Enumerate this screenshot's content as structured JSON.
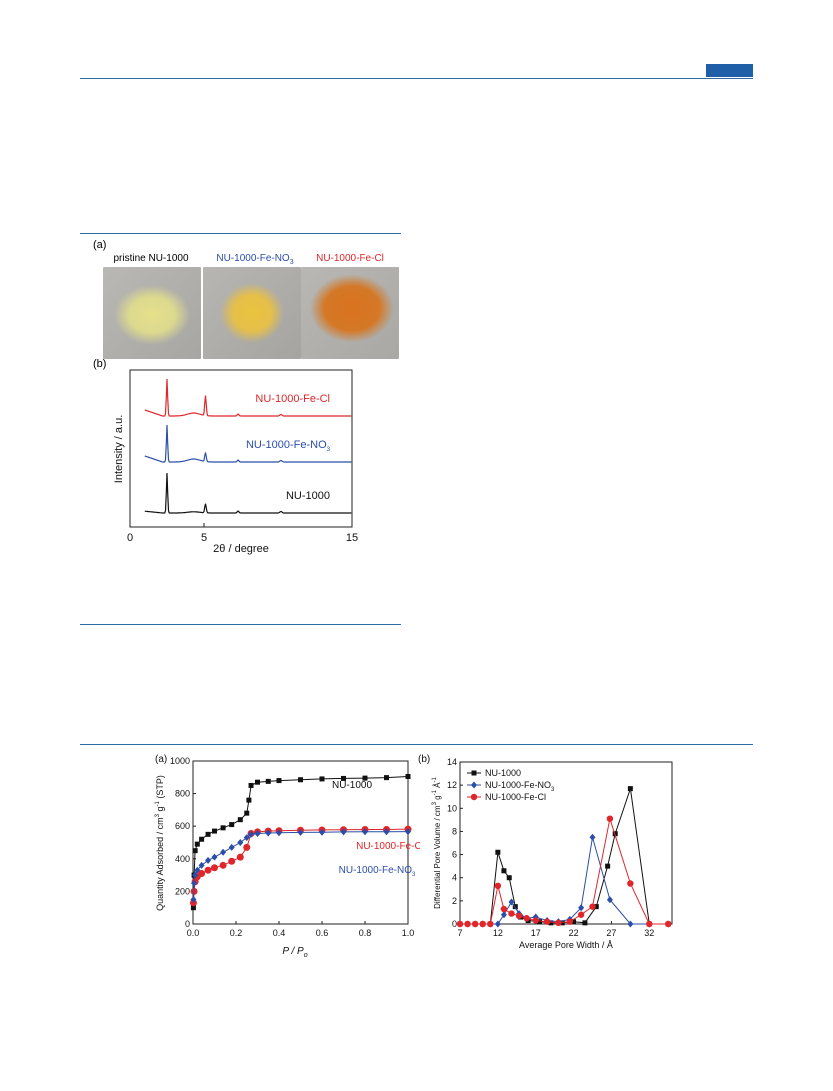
{
  "header": {
    "accent_color": "#1f5fa8"
  },
  "figure_top": {
    "panel_a_label": "(a)",
    "panel_b_label": "(b)",
    "photos": [
      {
        "title": "pristine NU-1000",
        "color": "#000000",
        "powder": "#e6e08a"
      },
      {
        "title": "NU-1000-Fe-NO",
        "subscript": "3",
        "color": "#2b4ea8",
        "powder": "#e8c23e"
      },
      {
        "title": "NU-1000-Fe-Cl",
        "color": "#e0262a",
        "powder": "#d9731f"
      }
    ]
  },
  "chart_data": [
    {
      "type": "line",
      "panel": "(b)",
      "xlabel": "2θ / degree",
      "ylabel": "Intensity / a.u.",
      "xlim": [
        0,
        15
      ],
      "x_ticks": [
        "0",
        "5",
        "15"
      ],
      "y_ticks": "none",
      "series": [
        {
          "name": "NU-1000-Fe-Cl",
          "color": "#e0262a",
          "offset": 2,
          "peaks_2theta": [
            2.5,
            5.1,
            7.3,
            10.2
          ]
        },
        {
          "name": "NU-1000-Fe-NO3",
          "color": "#2b4ea8",
          "offset": 1,
          "peaks_2theta": [
            2.5,
            5.1,
            7.3,
            10.2
          ]
        },
        {
          "name": "NU-1000",
          "color": "#111111",
          "offset": 0,
          "peaks_2theta": [
            2.5,
            5.1,
            7.3,
            10.2
          ]
        }
      ]
    },
    {
      "type": "line",
      "panel": "(a)",
      "xlabel": "P / P0",
      "ylabel": "Quantity Adsorbed / cm3 g-1 (STP)",
      "xlim": [
        0,
        1.0
      ],
      "ylim": [
        0,
        1000
      ],
      "x_ticks": [
        "0.0",
        "0.2",
        "0.4",
        "0.6",
        "0.8",
        "1.0"
      ],
      "y_ticks": [
        "0",
        "200",
        "400",
        "600",
        "800",
        "1000"
      ],
      "series": [
        {
          "name": "NU-1000",
          "color": "#111111",
          "marker": "square",
          "x": [
            0.002,
            0.005,
            0.01,
            0.02,
            0.04,
            0.07,
            0.1,
            0.14,
            0.18,
            0.22,
            0.25,
            0.26,
            0.27,
            0.3,
            0.35,
            0.4,
            0.5,
            0.6,
            0.7,
            0.8,
            0.9,
            1.0
          ],
          "y": [
            100,
            300,
            450,
            490,
            520,
            550,
            570,
            590,
            610,
            640,
            680,
            760,
            850,
            870,
            875,
            880,
            885,
            890,
            893,
            895,
            898,
            905
          ]
        },
        {
          "name": "NU-1000-Fe-Cl",
          "color": "#e0262a",
          "marker": "circle",
          "x": [
            0.002,
            0.005,
            0.01,
            0.02,
            0.04,
            0.07,
            0.1,
            0.14,
            0.18,
            0.22,
            0.25,
            0.27,
            0.3,
            0.35,
            0.4,
            0.5,
            0.6,
            0.7,
            0.8,
            0.9,
            1.0
          ],
          "y": [
            130,
            200,
            260,
            290,
            310,
            330,
            345,
            360,
            385,
            410,
            470,
            555,
            565,
            570,
            572,
            575,
            577,
            578,
            580,
            580,
            582
          ]
        },
        {
          "name": "NU-1000-Fe-NO3",
          "color": "#2b4ea8",
          "marker": "diamond",
          "x": [
            0.002,
            0.005,
            0.01,
            0.02,
            0.04,
            0.07,
            0.1,
            0.14,
            0.18,
            0.22,
            0.25,
            0.27,
            0.3,
            0.35,
            0.4,
            0.5,
            0.6,
            0.7,
            0.8,
            0.9,
            1.0
          ],
          "y": [
            150,
            250,
            300,
            330,
            360,
            390,
            410,
            440,
            470,
            500,
            530,
            550,
            555,
            558,
            560,
            562,
            563,
            565,
            566,
            566,
            567
          ]
        }
      ],
      "annotations": [
        "NU-1000",
        "NU-1000-Fe-Cl",
        "NU-1000-Fe-NO3"
      ]
    },
    {
      "type": "line",
      "panel": "(b)",
      "xlabel": "Average Pore Width / Å",
      "ylabel": "Differential Pore Volume / cm3 g-1 Å-1",
      "xlim": [
        7,
        35
      ],
      "ylim": [
        0,
        14
      ],
      "x_ticks": [
        "7",
        "12",
        "17",
        "22",
        "27",
        "32"
      ],
      "y_ticks": [
        "0",
        "2",
        "4",
        "6",
        "8",
        "10",
        "12",
        "14"
      ],
      "legend": "top-left",
      "series": [
        {
          "name": "NU-1000",
          "color": "#111111",
          "marker": "square",
          "x": [
            7,
            8,
            9,
            10,
            11,
            12,
            12.8,
            13.5,
            14.3,
            15,
            16,
            17.5,
            19,
            20.5,
            22,
            23.5,
            25,
            26.5,
            27.5,
            29.5,
            32,
            34.5
          ],
          "y": [
            0,
            0,
            0,
            0,
            0,
            6.2,
            4.6,
            4.0,
            1.5,
            0.6,
            0.3,
            0.2,
            0.1,
            0.1,
            0.2,
            0.1,
            1.5,
            5.0,
            7.8,
            11.7,
            0,
            0
          ]
        },
        {
          "name": "NU-1000-Fe-NO3",
          "color": "#2b4ea8",
          "marker": "diamond",
          "x": [
            7,
            8,
            9,
            10,
            11,
            12,
            12.8,
            13.8,
            14.8,
            15.8,
            17,
            18.5,
            20,
            21.5,
            23,
            24.5,
            26.8,
            29.5,
            32,
            34.5
          ],
          "y": [
            0,
            0,
            0,
            0,
            0,
            0.0,
            0.8,
            1.9,
            0.9,
            0.5,
            0.6,
            0.3,
            0.2,
            0.4,
            1.4,
            7.5,
            2.1,
            0,
            0,
            0
          ]
        },
        {
          "name": "NU-1000-Fe-Cl",
          "color": "#e0262a",
          "marker": "circle",
          "x": [
            7,
            8,
            9,
            10,
            11,
            12,
            12.8,
            13.8,
            14.8,
            15.8,
            17,
            18.5,
            20,
            21.5,
            23,
            24.5,
            26.8,
            29.5,
            32,
            34.5
          ],
          "y": [
            0,
            0,
            0,
            0,
            0,
            3.3,
            1.3,
            0.9,
            0.7,
            0.5,
            0.3,
            0.2,
            0.1,
            0.2,
            0.8,
            1.5,
            9.1,
            3.5,
            0,
            0
          ]
        }
      ]
    }
  ]
}
